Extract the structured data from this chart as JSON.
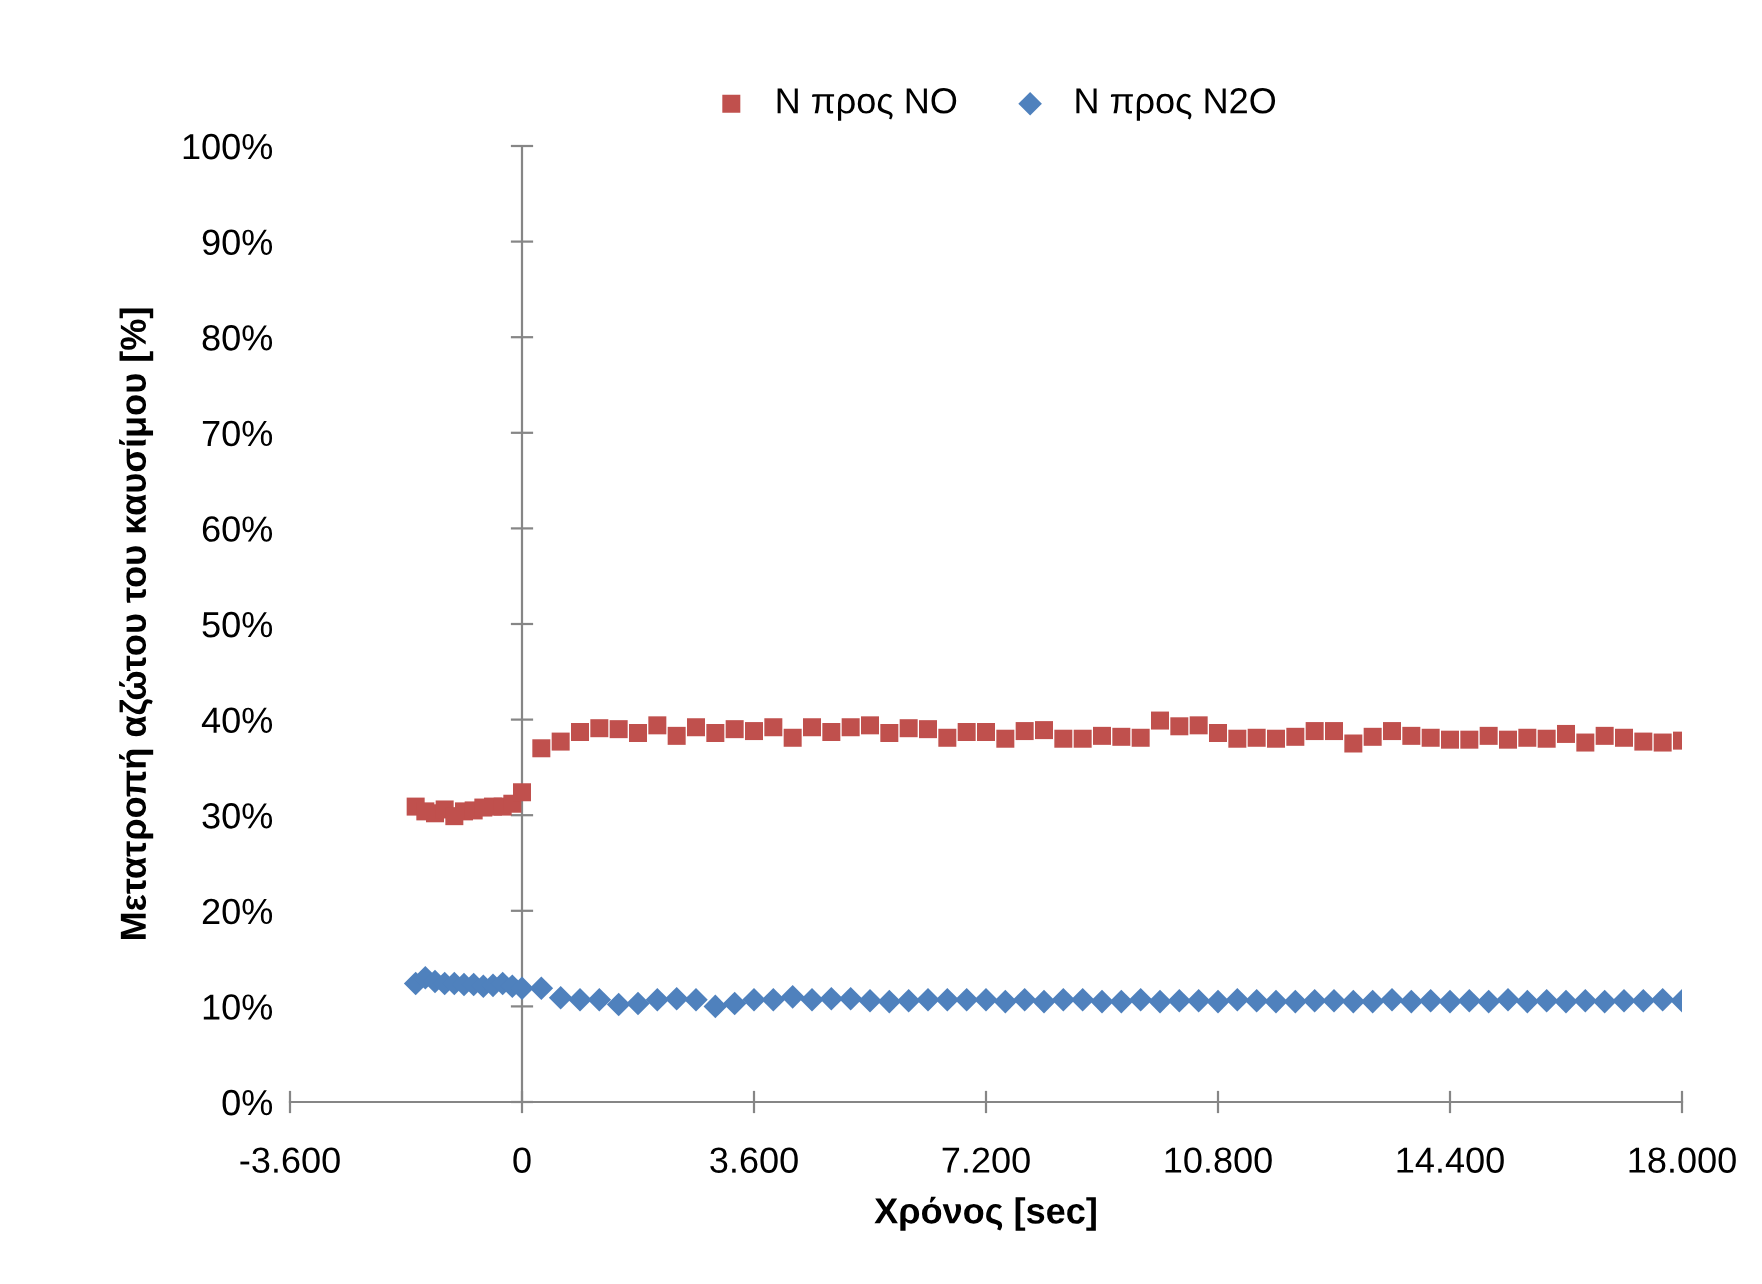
{
  "chart_data": {
    "type": "scatter",
    "xlabel": "Χρόνος [sec]",
    "ylabel": "Μετατροπή αζώτου του καυσίμου [%]",
    "legend": "top",
    "xlim": [
      -3600,
      18000
    ],
    "xticks": [
      {
        "value": -3600,
        "label": "-3.600"
      },
      0,
      {
        "value": 3600,
        "label": "3.600"
      },
      {
        "value": 7200,
        "label": "7.200"
      },
      {
        "value": 10800,
        "label": "10.800"
      },
      {
        "value": 14400,
        "label": "14.400"
      },
      {
        "value": 18000,
        "label": "18.000"
      }
    ],
    "ylim": [
      0,
      100
    ],
    "yticks": [
      {
        "value": 0,
        "label": "0%"
      },
      {
        "value": 10,
        "label": "10%"
      },
      {
        "value": 20,
        "label": "20%"
      },
      {
        "value": 30,
        "label": "30%"
      },
      {
        "value": 40,
        "label": "40%"
      },
      {
        "value": 50,
        "label": "50%"
      },
      {
        "value": 60,
        "label": "60%"
      },
      {
        "value": 70,
        "label": "70%"
      },
      {
        "value": 80,
        "label": "80%"
      },
      {
        "value": 90,
        "label": "90%"
      },
      {
        "value": 100,
        "label": "100%"
      }
    ],
    "x": [
      -1650,
      -1500,
      -1350,
      -1200,
      -1050,
      -900,
      -750,
      -600,
      -450,
      -300,
      -150,
      0,
      300,
      600,
      900,
      1200,
      1500,
      1800,
      2100,
      2400,
      2700,
      3000,
      3300,
      3600,
      3900,
      4200,
      4500,
      4800,
      5100,
      5400,
      5700,
      6000,
      6300,
      6600,
      6900,
      7200,
      7500,
      7800,
      8100,
      8400,
      8700,
      9000,
      9300,
      9600,
      9900,
      10200,
      10500,
      10800,
      11100,
      11400,
      11700,
      12000,
      12300,
      12600,
      12900,
      13200,
      13500,
      13800,
      14100,
      14400,
      14700,
      15000,
      15300,
      15600,
      15900,
      16200,
      16500,
      16800,
      17100,
      17400,
      17700,
      18000
    ],
    "series": [
      {
        "name": "N προς NO",
        "color": "#c0504d",
        "marker": "square",
        "values": [
          30.9,
          30.4,
          30.2,
          30.6,
          29.9,
          30.4,
          30.5,
          30.8,
          30.9,
          30.9,
          31.2,
          32.4,
          37.0,
          37.7,
          38.7,
          39.1,
          39.0,
          38.6,
          39.4,
          38.3,
          39.2,
          38.6,
          39.0,
          38.8,
          39.2,
          38.1,
          39.2,
          38.7,
          39.2,
          39.4,
          38.6,
          39.1,
          39.0,
          38.1,
          38.7,
          38.7,
          38.0,
          38.8,
          38.9,
          38.0,
          38.0,
          38.3,
          38.2,
          38.1,
          39.9,
          39.3,
          39.4,
          38.6,
          38.0,
          38.1,
          38.0,
          38.2,
          38.8,
          38.8,
          37.5,
          38.2,
          38.8,
          38.3,
          38.1,
          37.9,
          37.9,
          38.3,
          37.9,
          38.1,
          38.0,
          38.5,
          37.6,
          38.3,
          38.1,
          37.7,
          37.6,
          37.8
        ]
      },
      {
        "name": "N προς N2O",
        "color": "#4f81bd",
        "marker": "diamond",
        "values": [
          12.4,
          13.0,
          12.6,
          12.4,
          12.4,
          12.3,
          12.3,
          12.1,
          12.2,
          12.4,
          12.1,
          11.9,
          11.9,
          10.9,
          10.7,
          10.7,
          10.2,
          10.3,
          10.7,
          10.8,
          10.7,
          10.0,
          10.3,
          10.7,
          10.7,
          11.0,
          10.7,
          10.8,
          10.8,
          10.6,
          10.5,
          10.6,
          10.7,
          10.7,
          10.7,
          10.7,
          10.5,
          10.7,
          10.5,
          10.7,
          10.7,
          10.5,
          10.5,
          10.7,
          10.5,
          10.6,
          10.6,
          10.5,
          10.7,
          10.6,
          10.5,
          10.5,
          10.6,
          10.6,
          10.5,
          10.5,
          10.7,
          10.5,
          10.6,
          10.5,
          10.6,
          10.5,
          10.7,
          10.5,
          10.6,
          10.5,
          10.6,
          10.5,
          10.6,
          10.6,
          10.7,
          10.6
        ]
      }
    ]
  }
}
